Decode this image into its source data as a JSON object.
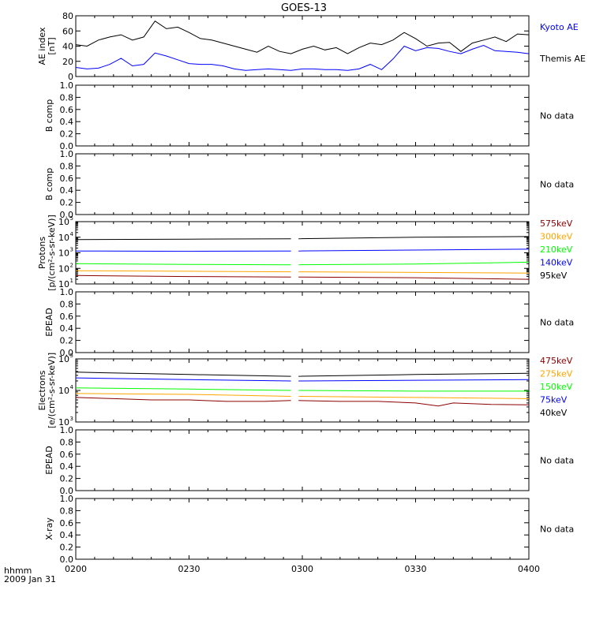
{
  "title": "GOES-13",
  "x_axis": {
    "ticks": [
      "0200",
      "0230",
      "0300",
      "0330",
      "0400"
    ],
    "label_line1": "hhmm",
    "label_line2": "2009 Jan 31"
  },
  "colors": {
    "black": "#000000",
    "blue": "#0000ff",
    "red": "#8b0000",
    "orange": "#ffa500",
    "green": "#00ff00",
    "darkblue": "#0000ff"
  },
  "chart_data": [
    {
      "type": "line",
      "id": "ae",
      "ylabel": [
        "AE index",
        "[nT]"
      ],
      "ylim": [
        0,
        80
      ],
      "yticks": [
        "0",
        "20",
        "40",
        "60",
        "80"
      ],
      "series": [
        {
          "name": "Kyoto AE",
          "color": "#0000ff",
          "x": [
            0,
            3,
            6,
            9,
            12,
            15,
            18,
            21,
            24,
            27,
            30,
            33,
            36,
            39,
            42,
            45,
            48,
            51,
            54,
            57,
            60,
            63,
            66,
            69,
            72,
            75,
            78,
            81,
            84,
            87,
            90,
            93,
            96,
            99,
            102,
            105,
            108,
            111,
            114,
            117,
            120
          ],
          "y": [
            12,
            10,
            11,
            16,
            24,
            14,
            16,
            31,
            27,
            22,
            17,
            16,
            16,
            14,
            10,
            8,
            9,
            10,
            9,
            8,
            10,
            10,
            9,
            9,
            8,
            10,
            16,
            9,
            23,
            40,
            34,
            38,
            37,
            33,
            30,
            36,
            41,
            34,
            33,
            32,
            30
          ]
        },
        {
          "name": "Themis AE",
          "color": "#000000",
          "x": [
            0,
            3,
            6,
            9,
            12,
            15,
            18,
            21,
            24,
            27,
            30,
            33,
            36,
            39,
            42,
            45,
            48,
            51,
            54,
            57,
            60,
            63,
            66,
            69,
            72,
            75,
            78,
            81,
            84,
            87,
            90,
            93,
            96,
            99,
            102,
            105,
            108,
            111,
            114,
            117,
            120
          ],
          "y": [
            42,
            40,
            48,
            52,
            55,
            48,
            52,
            73,
            63,
            65,
            58,
            50,
            48,
            44,
            40,
            36,
            32,
            40,
            33,
            30,
            36,
            40,
            35,
            38,
            30,
            38,
            44,
            42,
            48,
            58,
            50,
            40,
            44,
            45,
            33,
            44,
            48,
            52,
            46,
            56,
            55
          ]
        }
      ]
    },
    {
      "type": "line",
      "id": "bcomp1",
      "ylabel": [
        "B comp"
      ],
      "ylim": [
        0,
        1
      ],
      "yticks": [
        "0.0",
        "0.2",
        "0.4",
        "0.6",
        "0.8",
        "1.0"
      ],
      "annotation": "No data",
      "series": []
    },
    {
      "type": "line",
      "id": "bcomp2",
      "ylabel": [
        "B comp"
      ],
      "ylim": [
        0,
        1
      ],
      "yticks": [
        "0.0",
        "0.2",
        "0.4",
        "0.6",
        "0.8",
        "1.0"
      ],
      "annotation": "No data",
      "series": []
    },
    {
      "type": "line",
      "id": "protons",
      "ylabel": [
        "Protons",
        "[p/(cm²-s-sr-keV)]"
      ],
      "log_scale": true,
      "ylim_exp": [
        1,
        5
      ],
      "yticks": [
        "10",
        "10",
        "10",
        "10",
        "10"
      ],
      "ytick_exponents": [
        "1",
        "2",
        "3",
        "4",
        "5"
      ],
      "gap": [
        57,
        59
      ],
      "series": [
        {
          "name": "575keV",
          "color": "#8b0000",
          "x": [
            0,
            30,
            57,
            59,
            90,
            120
          ],
          "y": [
            35,
            30,
            28,
            28,
            25,
            20
          ]
        },
        {
          "name": "300keV",
          "color": "#ffa500",
          "x": [
            0,
            30,
            57,
            59,
            90,
            120
          ],
          "y": [
            70,
            65,
            60,
            60,
            55,
            50
          ]
        },
        {
          "name": "210keV",
          "color": "#00ff00",
          "x": [
            0,
            30,
            57,
            59,
            90,
            120
          ],
          "y": [
            200,
            180,
            170,
            170,
            190,
            250
          ]
        },
        {
          "name": "140keV",
          "color": "#0000ff",
          "x": [
            0,
            30,
            57,
            59,
            90,
            120
          ],
          "y": [
            1300,
            1250,
            1300,
            1300,
            1500,
            1700
          ]
        },
        {
          "name": "95keV",
          "color": "#000000",
          "x": [
            0,
            30,
            57,
            59,
            90,
            120
          ],
          "y": [
            7000,
            7500,
            8000,
            8000,
            10000,
            11000
          ]
        }
      ]
    },
    {
      "type": "line",
      "id": "epead1",
      "ylabel": [
        "EPEAD"
      ],
      "ylim": [
        0,
        1
      ],
      "yticks": [
        "0.0",
        "0.2",
        "0.4",
        "0.6",
        "0.8",
        "1.0"
      ],
      "annotation": "No data",
      "series": []
    },
    {
      "type": "line",
      "id": "electrons",
      "ylabel": [
        "Electrons",
        "[e/(cm²-s-sr-keV)]"
      ],
      "log_scale": true,
      "ylim_exp": [
        3,
        5
      ],
      "yticks": [
        "10",
        "10",
        "10"
      ],
      "ytick_exponents": [
        "3",
        "4",
        "5"
      ],
      "gap": [
        57,
        59
      ],
      "series": [
        {
          "name": "475keV",
          "color": "#8b0000",
          "x": [
            0,
            10,
            20,
            30,
            40,
            50,
            57,
            59,
            70,
            80,
            90,
            96,
            100,
            110,
            120
          ],
          "y": [
            6000,
            5500,
            5000,
            5000,
            4500,
            4500,
            4800,
            4800,
            4500,
            4500,
            4000,
            3200,
            4000,
            3600,
            3500
          ]
        },
        {
          "name": "275keV",
          "color": "#ffa500",
          "x": [
            0,
            30,
            57,
            59,
            90,
            120
          ],
          "y": [
            8000,
            7500,
            6500,
            6500,
            6000,
            5500
          ]
        },
        {
          "name": "150keV",
          "color": "#00ff00",
          "x": [
            0,
            30,
            57,
            59,
            90,
            120
          ],
          "y": [
            12000,
            11000,
            10000,
            10000,
            9500,
            9500
          ]
        },
        {
          "name": "75keV",
          "color": "#0000ff",
          "x": [
            0,
            30,
            57,
            59,
            90,
            120
          ],
          "y": [
            25000,
            22000,
            20000,
            20000,
            21000,
            22000
          ]
        },
        {
          "name": "40keV",
          "color": "#000000",
          "x": [
            0,
            30,
            57,
            59,
            90,
            120
          ],
          "y": [
            38000,
            32000,
            28000,
            28000,
            32000,
            35000
          ]
        }
      ]
    },
    {
      "type": "line",
      "id": "epead2",
      "ylabel": [
        "EPEAD"
      ],
      "ylim": [
        0,
        1
      ],
      "yticks": [
        "0.0",
        "0.2",
        "0.4",
        "0.6",
        "0.8",
        "1.0"
      ],
      "annotation": "No data",
      "series": []
    },
    {
      "type": "line",
      "id": "xray",
      "ylabel": [
        "X-ray"
      ],
      "ylim": [
        0,
        1
      ],
      "yticks": [
        "0.0",
        "0.2",
        "0.4",
        "0.6",
        "0.8",
        "1.0"
      ],
      "annotation": "No data",
      "series": []
    }
  ]
}
